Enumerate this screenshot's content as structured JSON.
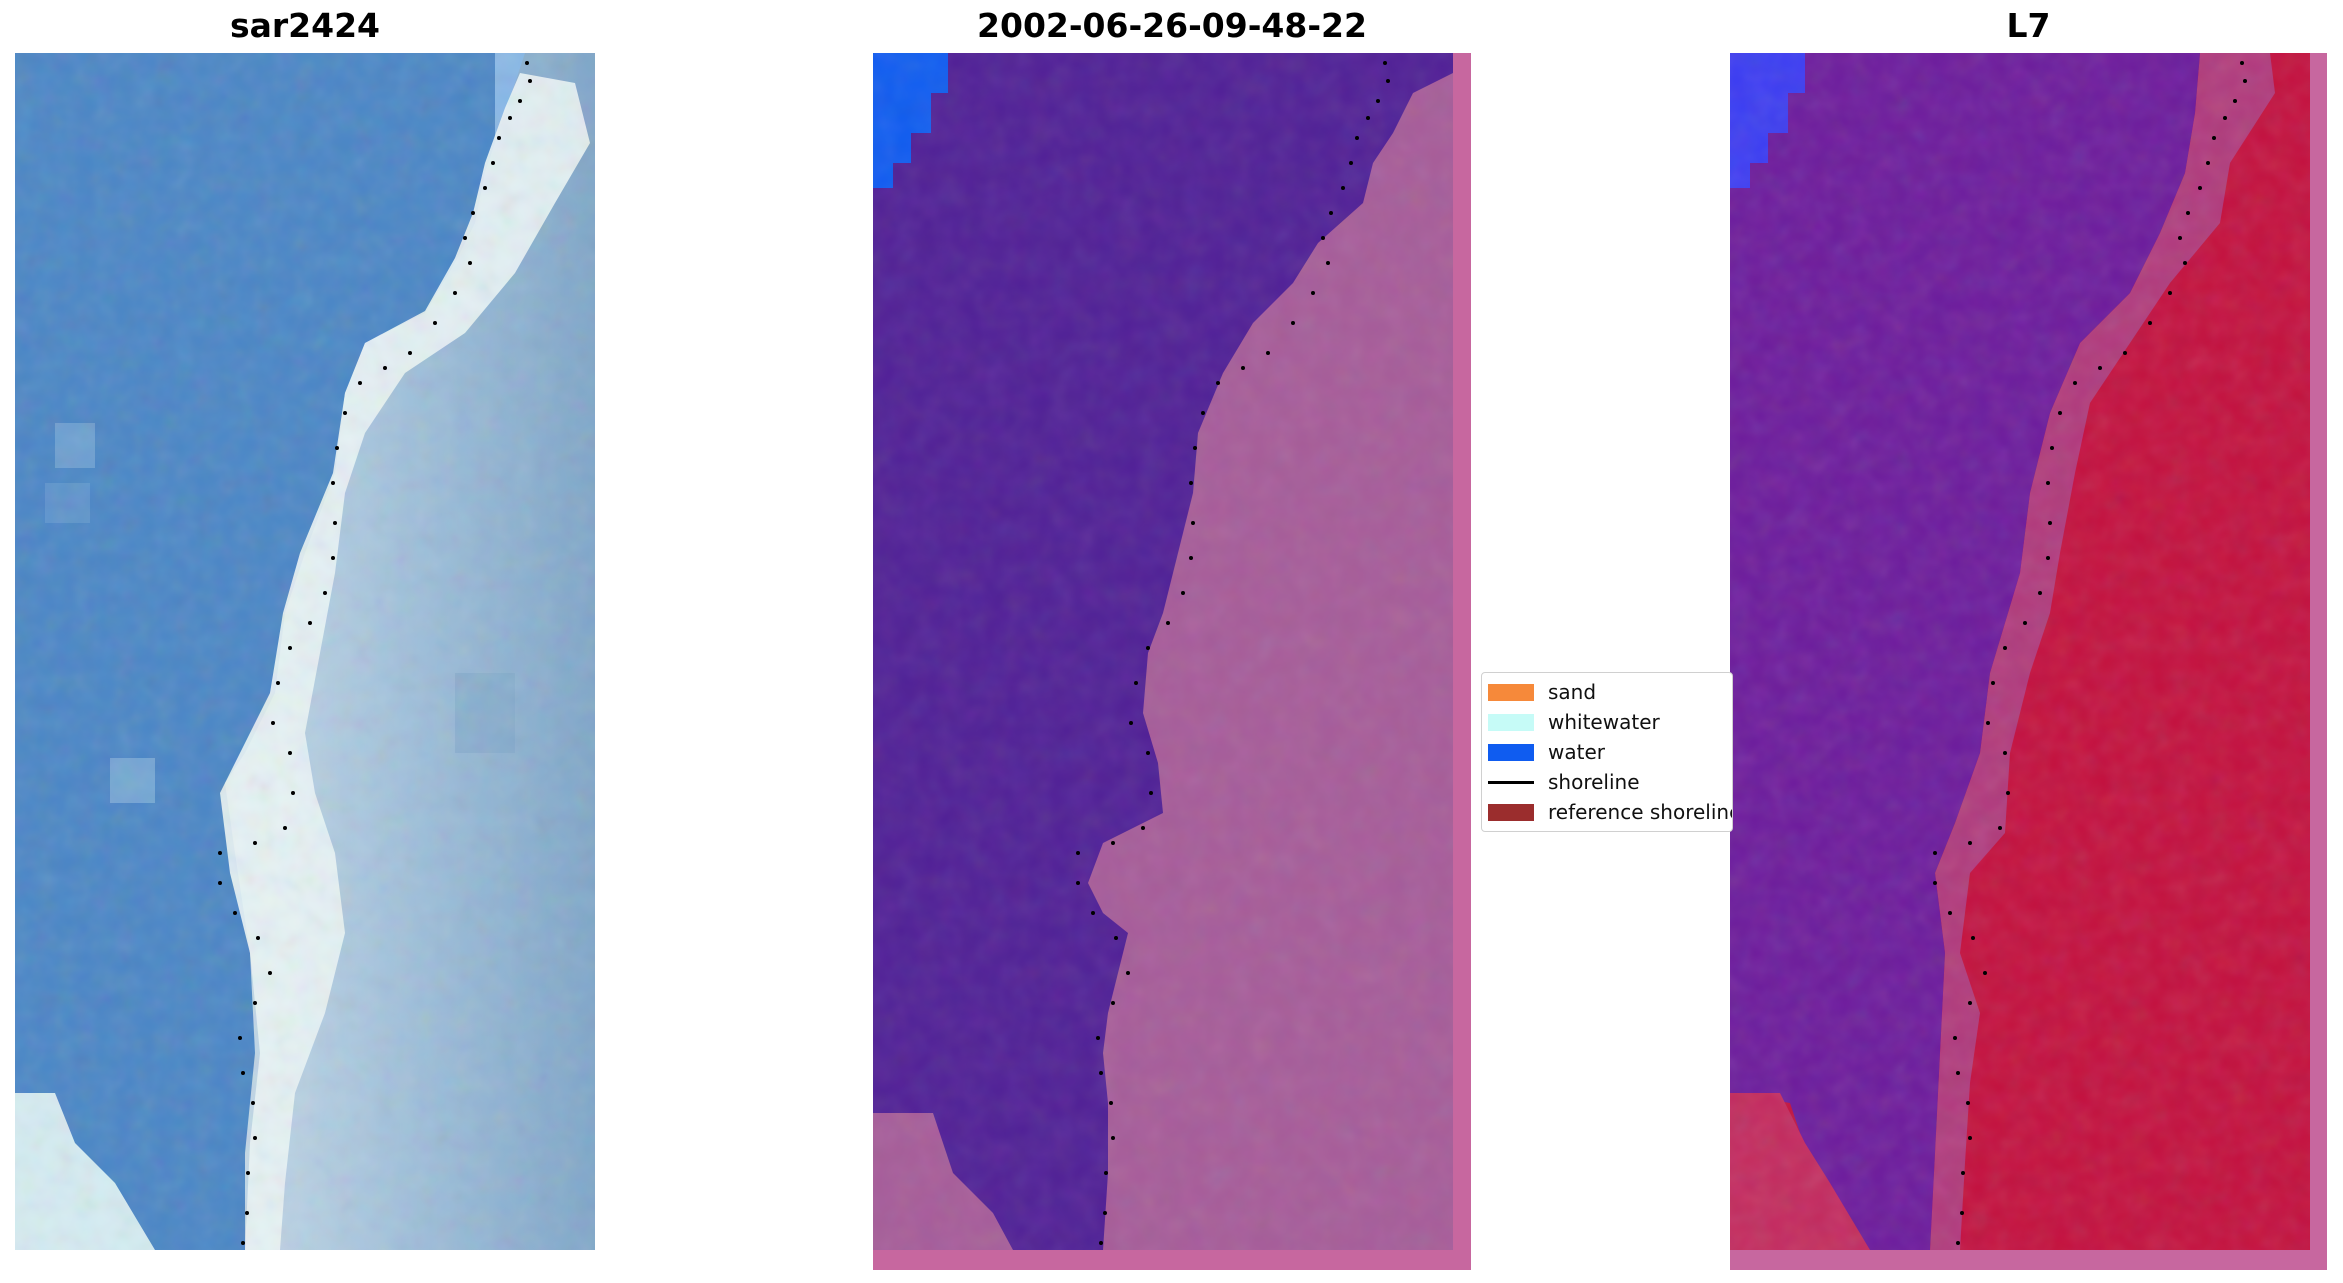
{
  "panels": [
    {
      "title": "sar2424"
    },
    {
      "title": "2002-06-26-09-48-22"
    },
    {
      "title": "L7"
    }
  ],
  "legend": {
    "items": [
      {
        "label": "sand",
        "color": "#f6893a",
        "kind": "patch"
      },
      {
        "label": "whitewater",
        "color": "#c6fbf7",
        "kind": "patch"
      },
      {
        "label": "water",
        "color": "#0f5cf0",
        "kind": "patch"
      },
      {
        "label": "shoreline",
        "color": "#000000",
        "kind": "line"
      },
      {
        "label": "reference shoreline",
        "color": "#9b2d2d",
        "kind": "patch"
      }
    ]
  },
  "colors": {
    "rgb_water": "#4a86c6",
    "rgb_whitewater": "#e8f4f6",
    "rgb_land": "#92b4d2",
    "class_water": "#502096",
    "class_water_blue": "#0f5cf0",
    "class_land": "#a65c99",
    "class_frame": "#c7679f",
    "mndwi_water": "#6c1b9c",
    "mndwi_land": "#c3103e",
    "mndwi_blue": "#3b3cf2",
    "shoreline_dots": "#000000"
  }
}
